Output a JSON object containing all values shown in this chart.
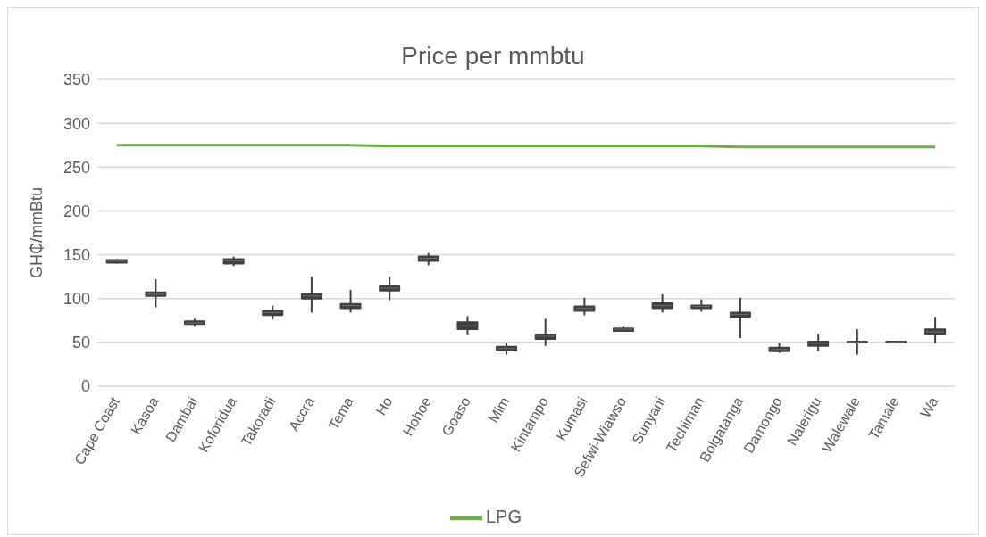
{
  "chart_data": {
    "type": "box",
    "title": "Price per mmbtu",
    "ylabel": "GH₵/mmBtu",
    "categories": [
      "Cape Coast",
      "Kasoa",
      "Dambai",
      "Koforidua",
      "Takoradi",
      "Accra",
      "Tema",
      "Ho",
      "Hohoe",
      "Goaso",
      "Mim",
      "Kintampo",
      "Kumasi",
      "Sefwi-Wiawso",
      "Sunyani",
      "Techiman",
      "Bolgatanga",
      "Damongo",
      "Nalerigu",
      "Walewale",
      "Tamale",
      "Wa"
    ],
    "ylim": [
      0,
      350
    ],
    "yticks": [
      0,
      50,
      100,
      150,
      200,
      250,
      300,
      350
    ],
    "grid": "y",
    "legend": "bottom",
    "series": [
      {
        "color": "#404040",
        "boxes": [
          {
            "low": 140,
            "q1": 140,
            "median": 143,
            "q3": 145,
            "high": 145
          },
          {
            "low": 90,
            "q1": 102,
            "median": 105,
            "q3": 108,
            "high": 122
          },
          {
            "low": 68,
            "q1": 70,
            "median": 72,
            "q3": 75,
            "high": 77
          },
          {
            "low": 137,
            "q1": 139,
            "median": 143,
            "q3": 146,
            "high": 148
          },
          {
            "low": 76,
            "q1": 80,
            "median": 84,
            "q3": 87,
            "high": 92
          },
          {
            "low": 84,
            "q1": 99,
            "median": 103,
            "q3": 106,
            "high": 125
          },
          {
            "low": 84,
            "q1": 88,
            "median": 92,
            "q3": 95,
            "high": 110
          },
          {
            "low": 98,
            "q1": 108,
            "median": 112,
            "q3": 115,
            "high": 125
          },
          {
            "low": 138,
            "q1": 142,
            "median": 146,
            "q3": 149,
            "high": 152
          },
          {
            "low": 59,
            "q1": 64,
            "median": 69,
            "q3": 74,
            "high": 80
          },
          {
            "low": 36,
            "q1": 40,
            "median": 43,
            "q3": 46,
            "high": 49
          },
          {
            "low": 46,
            "q1": 53,
            "median": 57,
            "q3": 60,
            "high": 77
          },
          {
            "low": 81,
            "q1": 85,
            "median": 89,
            "q3": 92,
            "high": 101
          },
          {
            "low": 62,
            "q1": 62,
            "median": 65,
            "q3": 67,
            "high": 68
          },
          {
            "low": 84,
            "q1": 88,
            "median": 92,
            "q3": 96,
            "high": 105
          },
          {
            "low": 85,
            "q1": 88,
            "median": 91,
            "q3": 93,
            "high": 99
          },
          {
            "low": 55,
            "q1": 78,
            "median": 82,
            "q3": 85,
            "high": 101
          },
          {
            "low": 38,
            "q1": 39,
            "median": 42,
            "q3": 45,
            "high": 50
          },
          {
            "low": 40,
            "q1": 45,
            "median": 49,
            "q3": 52,
            "high": 60
          },
          {
            "low": 36,
            "q1": 49,
            "median": 50,
            "q3": 52,
            "high": 65
          },
          {
            "low": 49,
            "q1": 49,
            "median": 50,
            "q3": 52,
            "high": 52
          },
          {
            "low": 49,
            "q1": 59,
            "median": 62,
            "q3": 66,
            "high": 79
          }
        ]
      },
      {
        "type": "line",
        "name": "LPG",
        "color": "#70ad47",
        "values": [
          275,
          275,
          275,
          275,
          275,
          275,
          275,
          274,
          274,
          274,
          274,
          274,
          274,
          274,
          274,
          274,
          273,
          273,
          273,
          273,
          273,
          273
        ]
      }
    ]
  }
}
